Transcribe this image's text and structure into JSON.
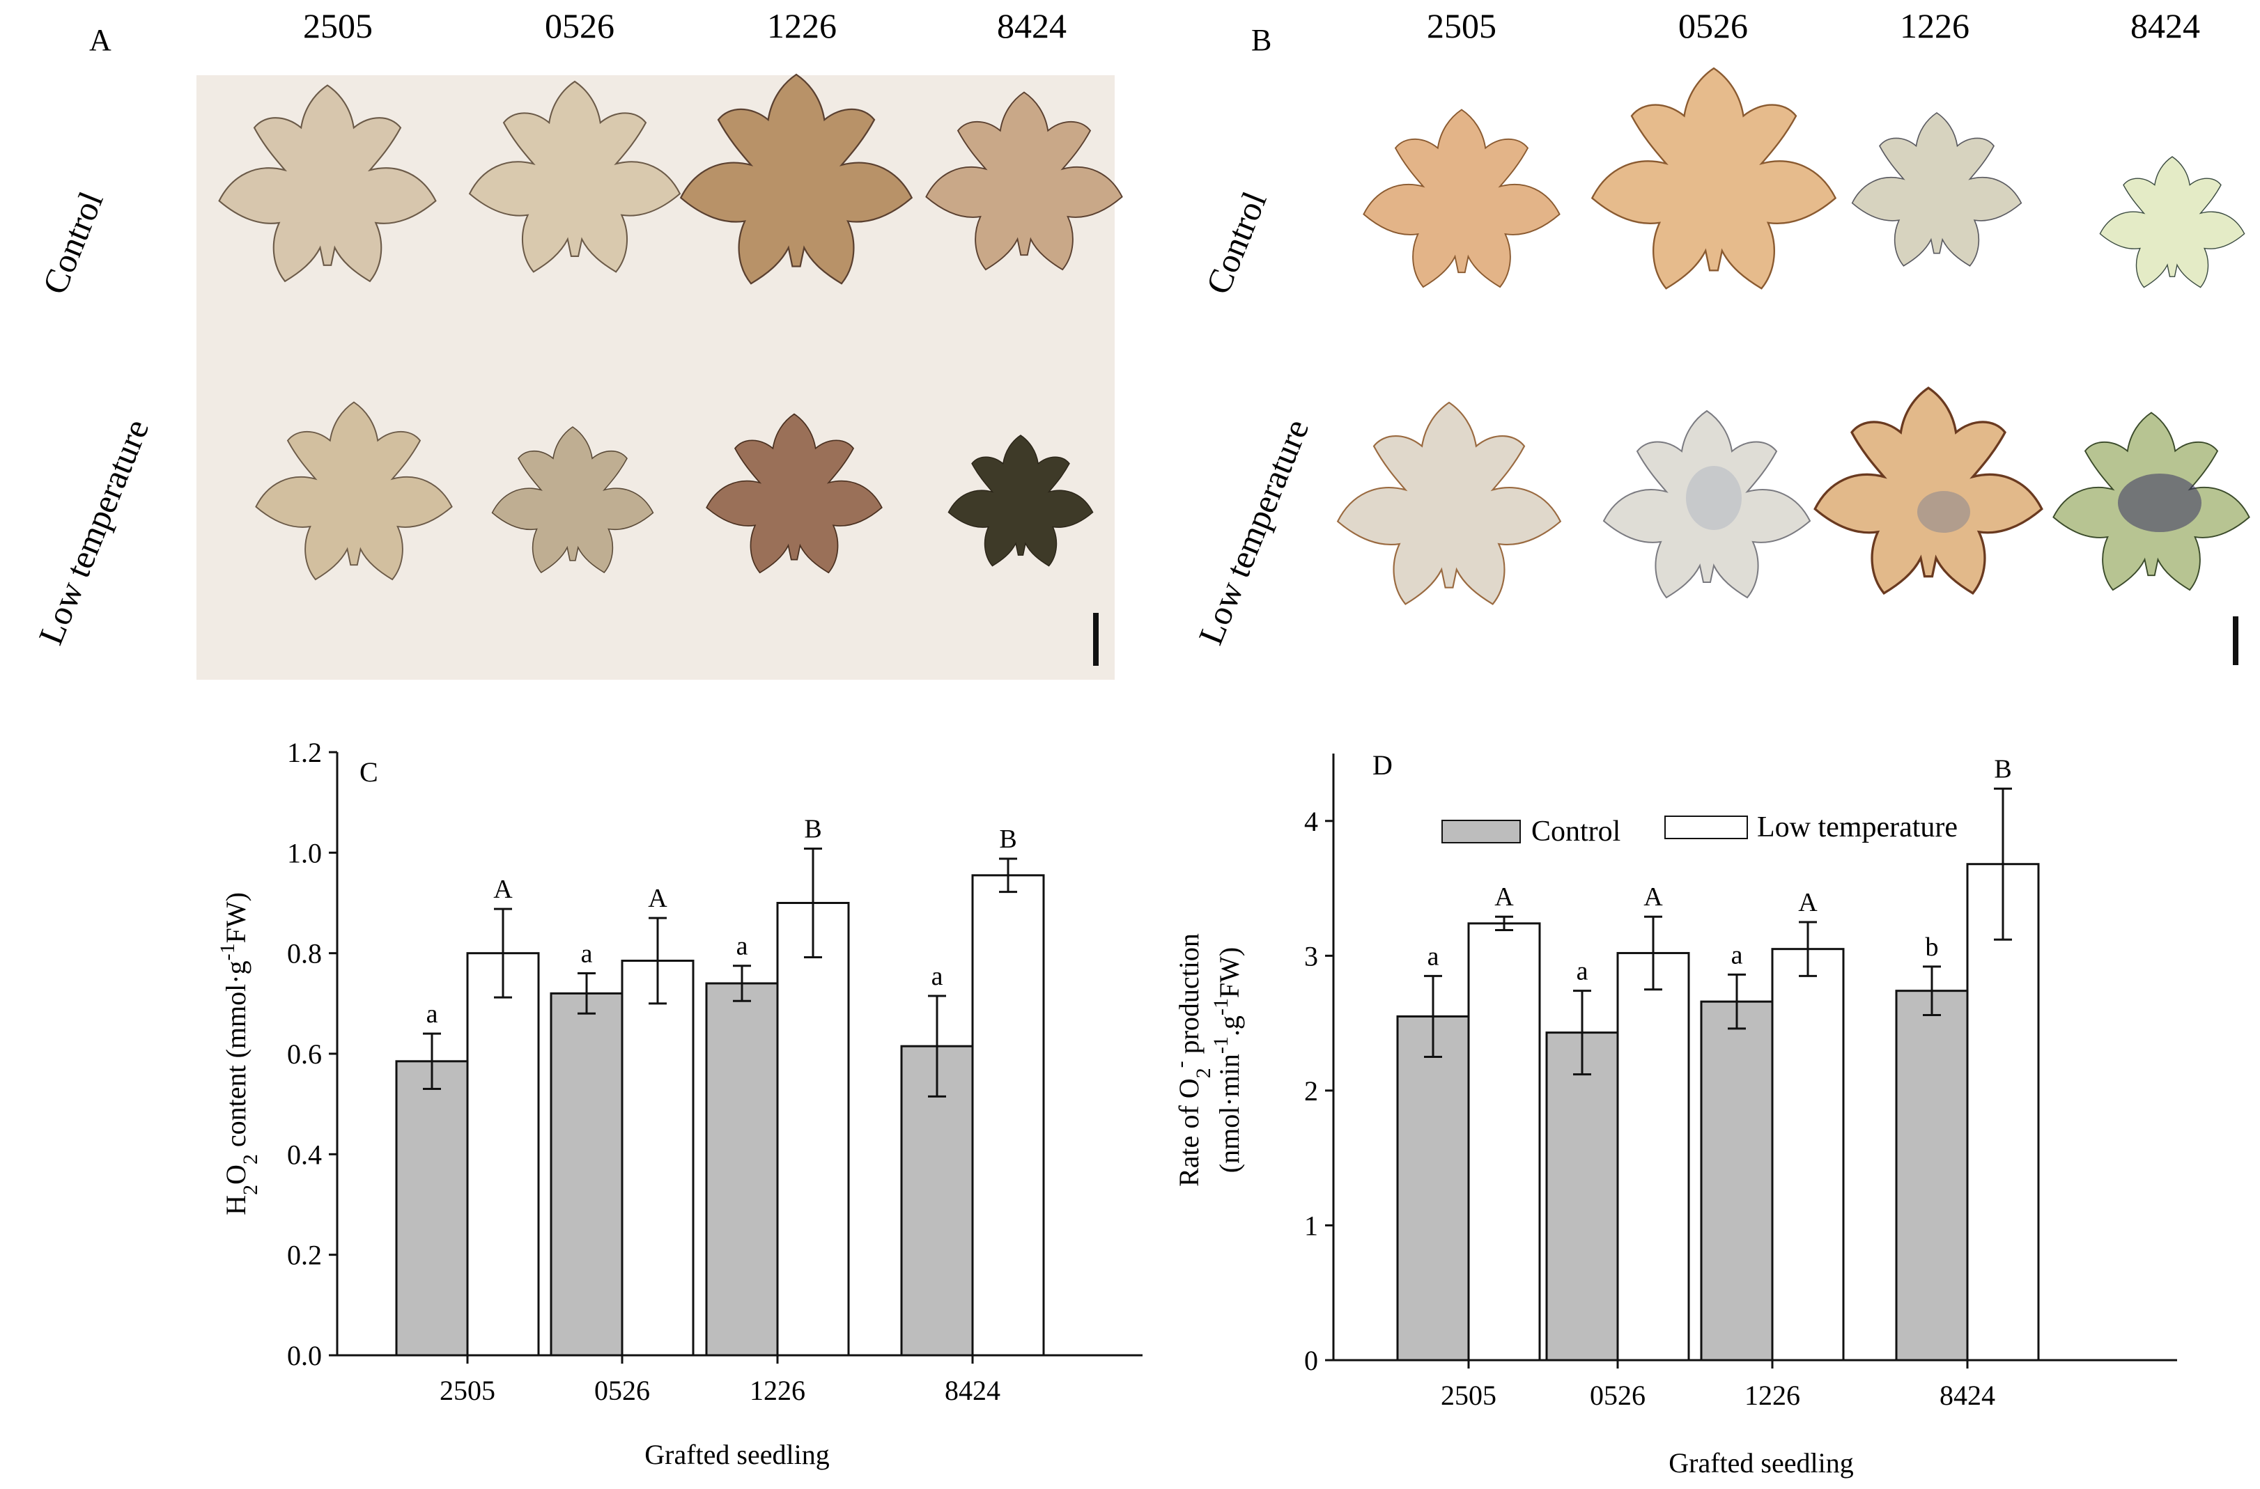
{
  "panels": {
    "A": {
      "label": "A",
      "columns": [
        "2505",
        "0526",
        "1226",
        "8424"
      ],
      "rows": [
        "Control",
        "Low temperature"
      ],
      "leaf_colors": {
        "Control": [
          "#d7c6ad",
          "#d9c9ae",
          "#b89268",
          "#c9a888"
        ],
        "Low temperature": [
          "#d2bf9f",
          "#bfae92",
          "#9a7058",
          "#3e3a28"
        ]
      }
    },
    "B": {
      "label": "B",
      "columns": [
        "2505",
        "0526",
        "1226",
        "8424"
      ],
      "rows": [
        "Control",
        "Low temperature"
      ],
      "leaf_colors": {
        "Control": [
          "#e3b488",
          "#e6bb8c",
          "#d7d3bf",
          "#e4ebc6"
        ],
        "Low temperature": [
          "#e0d8cb",
          "#dfddd6",
          "#e2b98a",
          "#b7c492"
        ]
      }
    }
  },
  "chart_data": [
    {
      "panel": "C",
      "type": "bar",
      "title": "",
      "categories": [
        "2505",
        "0526",
        "1226",
        "8424"
      ],
      "series": [
        {
          "name": "Control",
          "values": [
            0.585,
            0.72,
            0.74,
            0.615
          ],
          "errors": [
            0.055,
            0.04,
            0.035,
            0.1
          ],
          "letters": [
            "a",
            "a",
            "a",
            "a"
          ],
          "fill": "#bdbdbd"
        },
        {
          "name": "Low temperature",
          "values": [
            0.8,
            0.785,
            0.9,
            0.955
          ],
          "errors": [
            0.088,
            0.085,
            0.108,
            0.033
          ],
          "letters": [
            "A",
            "A",
            "B",
            "B"
          ],
          "fill": "#ffffff"
        }
      ],
      "xlabel": "Grafted seedling",
      "ylabel_parts": {
        "pre": "H",
        "sub1": "2",
        "mid": "O",
        "sub2": "2",
        "post1": " content (mmol·g",
        "sup": "-1",
        "post2": "FW)"
      },
      "ylim": [
        0,
        1.2
      ],
      "yticks": [
        "0.0",
        "0.2",
        "0.4",
        "0.6",
        "0.8",
        "1.0",
        "1.2"
      ],
      "legend": "none"
    },
    {
      "panel": "D",
      "type": "bar",
      "title": "",
      "categories": [
        "2505",
        "0526",
        "1226",
        "8424"
      ],
      "series": [
        {
          "name": "Control",
          "values": [
            2.55,
            2.43,
            2.66,
            2.74
          ],
          "errors": [
            0.3,
            0.31,
            0.2,
            0.18
          ],
          "letters": [
            "a",
            "a",
            "a",
            "b"
          ],
          "fill": "#bdbdbd"
        },
        {
          "name": "Low temperature",
          "values": [
            3.24,
            3.02,
            3.05,
            3.68
          ],
          "errors": [
            0.05,
            0.27,
            0.2,
            0.56
          ],
          "letters": [
            "A",
            "A",
            "A",
            "B"
          ],
          "fill": "#ffffff"
        }
      ],
      "xlabel": "Grafted seedling",
      "ylabel_line1_parts": {
        "pre": "Rate of O",
        "sub": "2",
        "sup": "-",
        "post": " production"
      },
      "ylabel_line2_parts": {
        "pre": "(nmol·min",
        "sup1": "-1",
        "mid": ".g",
        "sup2": "-1",
        "post": "FW)"
      },
      "ylim": [
        0,
        4.5
      ],
      "yticks": [
        "0",
        "1",
        "2",
        "3",
        "4"
      ],
      "legend": "top-left"
    }
  ],
  "colors": {
    "control_bar": "#bdbdbd",
    "axis": "#111111",
    "panel_A_bg": "#f1ebe4",
    "panel_B_bg": "#ffffff"
  }
}
